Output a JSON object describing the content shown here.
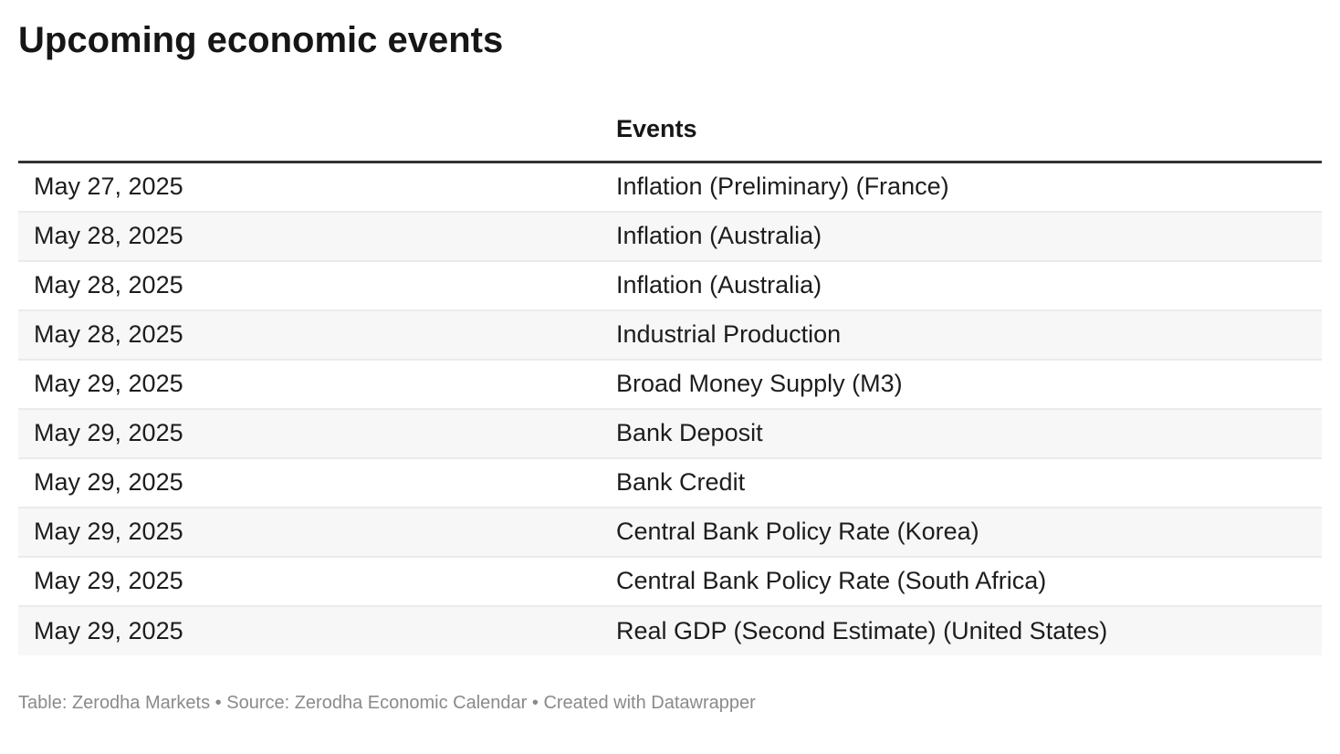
{
  "chart_data": {
    "type": "table",
    "title": "Upcoming economic events",
    "columns": [
      "",
      "Events"
    ],
    "rows": [
      [
        "May 27, 2025",
        "Inflation (Preliminary) (France)"
      ],
      [
        "May 28, 2025",
        "Inflation (Australia)"
      ],
      [
        "May 28, 2025",
        "Inflation (Australia)"
      ],
      [
        "May 28, 2025",
        "Industrial Production"
      ],
      [
        "May 29, 2025",
        "Broad Money Supply (M3)"
      ],
      [
        "May 29, 2025",
        "Bank Deposit"
      ],
      [
        "May 29, 2025",
        "Bank Credit"
      ],
      [
        "May 29, 2025",
        "Central Bank Policy Rate (Korea)"
      ],
      [
        "May 29, 2025",
        "Central Bank Policy Rate (South Africa)"
      ],
      [
        "May 29, 2025",
        "Real GDP (Second Estimate) (United States)"
      ]
    ],
    "layout": {
      "striped_rows": true,
      "header_rule": true
    }
  },
  "footer": {
    "table_prefix": "Table: ",
    "table_name": "Zerodha Markets",
    "separator1": " • ",
    "source_prefix": "Source: ",
    "source_name": "Zerodha Economic Calendar",
    "separator2": " • ",
    "created_prefix": "Created with ",
    "created_name": "Datawrapper"
  },
  "colors": {
    "title_text": "#161616",
    "body_text": "#1d1d1d",
    "header_rule": "#333333",
    "row_stripe": "#f7f7f7",
    "row_divider": "#ebebeb",
    "footer_text": "#8a8a8a",
    "background": "#ffffff"
  }
}
